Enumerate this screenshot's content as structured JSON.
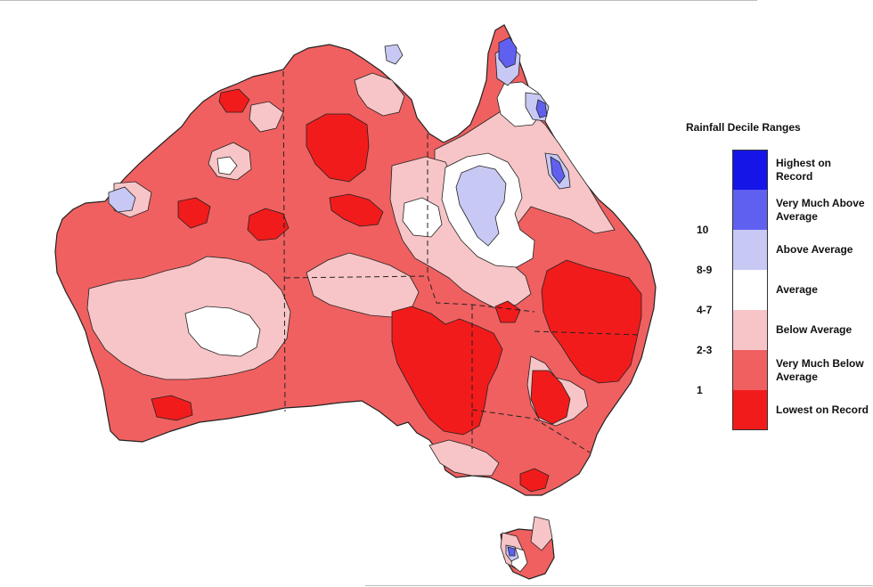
{
  "legend": {
    "title": "Rainfall Decile Ranges",
    "items": [
      {
        "label": "Highest on Record",
        "range": "",
        "color": "#1515e8"
      },
      {
        "label": "Very Much Above Average",
        "range": "10",
        "color": "#6060f0"
      },
      {
        "label": "Above Average",
        "range": "8-9",
        "color": "#c8c8f4"
      },
      {
        "label": "Average",
        "range": "4-7",
        "color": "#ffffff"
      },
      {
        "label": "Below Average",
        "range": "2-3",
        "color": "#f7c5c7"
      },
      {
        "label": "Very Much Below Average",
        "range": "1",
        "color": "#f06060"
      },
      {
        "label": "Lowest on Record",
        "range": "",
        "color": "#f21b1b"
      }
    ]
  },
  "colors": {
    "base_region": "#f06060",
    "below_average": "#f7c5c7",
    "lowest_record": "#f21b1b",
    "above_average": "#c8c8f4",
    "very_much_above": "#6060f0",
    "outline": "#222222"
  }
}
